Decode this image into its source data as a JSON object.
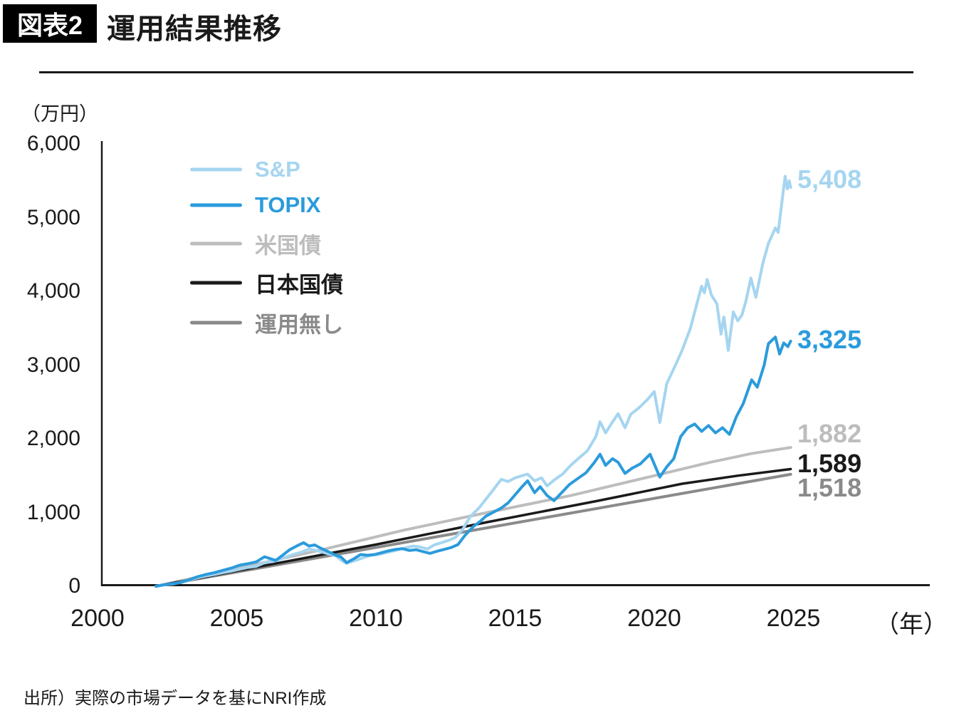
{
  "figure": {
    "tag": "図表2",
    "title": "運用結果推移",
    "source": "出所）実際の市場データを基にNRI作成"
  },
  "chart_data": {
    "type": "line",
    "title": "運用結果推移",
    "ylabel": "（万円）",
    "xlabel": "（年）",
    "xlim": [
      2000,
      2029.8
    ],
    "ylim": [
      0,
      6000
    ],
    "grid": false,
    "legend_position": "upper-left-inside",
    "yticks": [
      {
        "value": 6000,
        "label": "6,000"
      },
      {
        "value": 5000,
        "label": "5,000"
      },
      {
        "value": 4000,
        "label": "4,000"
      },
      {
        "value": 3000,
        "label": "3,000"
      },
      {
        "value": 2000,
        "label": "2,000"
      },
      {
        "value": 1000,
        "label": "1,000"
      },
      {
        "value": 0,
        "label": "0"
      }
    ],
    "xticks": [
      {
        "value": 2000,
        "label": "2000"
      },
      {
        "value": 2005,
        "label": "2005"
      },
      {
        "value": 2010,
        "label": "2010"
      },
      {
        "value": 2015,
        "label": "2015"
      },
      {
        "value": 2020,
        "label": "2020"
      },
      {
        "value": 2025,
        "label": "2025"
      }
    ],
    "series": [
      {
        "name": "S&P",
        "color": "#A5D5F0",
        "final_value": 5408,
        "end_label": "5,408",
        "points": [
          [
            2002.1,
            0
          ],
          [
            2002.4,
            18
          ],
          [
            2002.7,
            30
          ],
          [
            2003,
            55
          ],
          [
            2003.3,
            85
          ],
          [
            2003.6,
            115
          ],
          [
            2003.9,
            140
          ],
          [
            2004.2,
            160
          ],
          [
            2004.5,
            185
          ],
          [
            2004.8,
            205
          ],
          [
            2005.1,
            230
          ],
          [
            2005.4,
            255
          ],
          [
            2005.7,
            270
          ],
          [
            2006,
            320
          ],
          [
            2006.3,
            335
          ],
          [
            2006.5,
            355
          ],
          [
            2006.8,
            400
          ],
          [
            2007.1,
            440
          ],
          [
            2007.35,
            465
          ],
          [
            2007.6,
            505
          ],
          [
            2007.8,
            490
          ],
          [
            2008,
            470
          ],
          [
            2008.3,
            440
          ],
          [
            2008.55,
            415
          ],
          [
            2008.8,
            340
          ],
          [
            2008.95,
            310
          ],
          [
            2009.1,
            330
          ],
          [
            2009.35,
            360
          ],
          [
            2009.6,
            395
          ],
          [
            2009.85,
            420
          ],
          [
            2010.1,
            430
          ],
          [
            2010.35,
            455
          ],
          [
            2010.6,
            475
          ],
          [
            2010.85,
            500
          ],
          [
            2011.1,
            525
          ],
          [
            2011.35,
            545
          ],
          [
            2011.6,
            530
          ],
          [
            2011.85,
            505
          ],
          [
            2012.1,
            560
          ],
          [
            2012.35,
            590
          ],
          [
            2012.6,
            620
          ],
          [
            2012.85,
            660
          ],
          [
            2013.1,
            760
          ],
          [
            2013.4,
            950
          ],
          [
            2013.7,
            1060
          ],
          [
            2013.95,
            1180
          ],
          [
            2014.2,
            1300
          ],
          [
            2014.5,
            1450
          ],
          [
            2014.75,
            1420
          ],
          [
            2015,
            1470
          ],
          [
            2015.25,
            1500
          ],
          [
            2015.45,
            1520
          ],
          [
            2015.7,
            1430
          ],
          [
            2015.95,
            1470
          ],
          [
            2016.15,
            1360
          ],
          [
            2016.4,
            1440
          ],
          [
            2016.7,
            1520
          ],
          [
            2017,
            1640
          ],
          [
            2017.3,
            1740
          ],
          [
            2017.6,
            1840
          ],
          [
            2017.9,
            2030
          ],
          [
            2018.05,
            2230
          ],
          [
            2018.25,
            2080
          ],
          [
            2018.5,
            2230
          ],
          [
            2018.7,
            2340
          ],
          [
            2018.95,
            2150
          ],
          [
            2019.15,
            2330
          ],
          [
            2019.45,
            2420
          ],
          [
            2019.75,
            2530
          ],
          [
            2020,
            2640
          ],
          [
            2020.2,
            2220
          ],
          [
            2020.45,
            2750
          ],
          [
            2020.7,
            2950
          ],
          [
            2021,
            3200
          ],
          [
            2021.3,
            3500
          ],
          [
            2021.55,
            3860
          ],
          [
            2021.7,
            4070
          ],
          [
            2021.8,
            3980
          ],
          [
            2021.9,
            4160
          ],
          [
            2022.05,
            3950
          ],
          [
            2022.25,
            3830
          ],
          [
            2022.4,
            3420
          ],
          [
            2022.5,
            3650
          ],
          [
            2022.66,
            3200
          ],
          [
            2022.84,
            3720
          ],
          [
            2023,
            3600
          ],
          [
            2023.15,
            3680
          ],
          [
            2023.3,
            3880
          ],
          [
            2023.47,
            4180
          ],
          [
            2023.65,
            3920
          ],
          [
            2023.9,
            4380
          ],
          [
            2024.1,
            4650
          ],
          [
            2024.35,
            4860
          ],
          [
            2024.45,
            4800
          ],
          [
            2024.7,
            5560
          ],
          [
            2024.78,
            5390
          ],
          [
            2024.85,
            5500
          ],
          [
            2024.9,
            5408
          ]
        ]
      },
      {
        "name": "TOPIX",
        "color": "#2B9BDC",
        "final_value": 3325,
        "end_label": "3,325",
        "points": [
          [
            2002.1,
            0
          ],
          [
            2002.4,
            20
          ],
          [
            2002.7,
            35
          ],
          [
            2003,
            50
          ],
          [
            2003.3,
            90
          ],
          [
            2003.6,
            130
          ],
          [
            2003.9,
            160
          ],
          [
            2004.2,
            185
          ],
          [
            2004.5,
            215
          ],
          [
            2004.8,
            245
          ],
          [
            2005.1,
            285
          ],
          [
            2005.4,
            305
          ],
          [
            2005.7,
            330
          ],
          [
            2006,
            400
          ],
          [
            2006.2,
            375
          ],
          [
            2006.4,
            350
          ],
          [
            2006.65,
            420
          ],
          [
            2006.9,
            495
          ],
          [
            2007.15,
            545
          ],
          [
            2007.4,
            590
          ],
          [
            2007.6,
            545
          ],
          [
            2007.8,
            560
          ],
          [
            2008,
            520
          ],
          [
            2008.25,
            475
          ],
          [
            2008.5,
            430
          ],
          [
            2008.75,
            395
          ],
          [
            2008.95,
            320
          ],
          [
            2009.2,
            370
          ],
          [
            2009.45,
            430
          ],
          [
            2009.7,
            420
          ],
          [
            2009.95,
            430
          ],
          [
            2010.2,
            455
          ],
          [
            2010.45,
            480
          ],
          [
            2010.7,
            500
          ],
          [
            2010.95,
            510
          ],
          [
            2011.2,
            485
          ],
          [
            2011.45,
            495
          ],
          [
            2011.7,
            470
          ],
          [
            2011.95,
            445
          ],
          [
            2012.2,
            475
          ],
          [
            2012.45,
            500
          ],
          [
            2012.7,
            525
          ],
          [
            2012.95,
            565
          ],
          [
            2013.2,
            690
          ],
          [
            2013.5,
            810
          ],
          [
            2013.75,
            880
          ],
          [
            2013.95,
            950
          ],
          [
            2014.2,
            1000
          ],
          [
            2014.5,
            1060
          ],
          [
            2014.75,
            1130
          ],
          [
            2015,
            1240
          ],
          [
            2015.25,
            1350
          ],
          [
            2015.45,
            1430
          ],
          [
            2015.7,
            1270
          ],
          [
            2015.9,
            1350
          ],
          [
            2016.15,
            1230
          ],
          [
            2016.4,
            1160
          ],
          [
            2016.7,
            1280
          ],
          [
            2016.95,
            1380
          ],
          [
            2017.25,
            1460
          ],
          [
            2017.55,
            1540
          ],
          [
            2017.85,
            1680
          ],
          [
            2018.05,
            1790
          ],
          [
            2018.25,
            1640
          ],
          [
            2018.5,
            1730
          ],
          [
            2018.7,
            1680
          ],
          [
            2018.95,
            1530
          ],
          [
            2019.2,
            1600
          ],
          [
            2019.5,
            1660
          ],
          [
            2019.85,
            1790
          ],
          [
            2020.2,
            1480
          ],
          [
            2020.45,
            1620
          ],
          [
            2020.7,
            1730
          ],
          [
            2020.95,
            2030
          ],
          [
            2021.2,
            2150
          ],
          [
            2021.45,
            2200
          ],
          [
            2021.7,
            2100
          ],
          [
            2021.95,
            2180
          ],
          [
            2022.2,
            2080
          ],
          [
            2022.45,
            2150
          ],
          [
            2022.7,
            2060
          ],
          [
            2022.95,
            2300
          ],
          [
            2023.2,
            2480
          ],
          [
            2023.5,
            2800
          ],
          [
            2023.7,
            2700
          ],
          [
            2023.95,
            3000
          ],
          [
            2024.1,
            3290
          ],
          [
            2024.35,
            3380
          ],
          [
            2024.5,
            3150
          ],
          [
            2024.65,
            3300
          ],
          [
            2024.8,
            3250
          ],
          [
            2024.9,
            3325
          ]
        ]
      },
      {
        "name": "米国債",
        "color": "#BDBDBD",
        "final_value": 1882,
        "end_label": "1,882",
        "points": [
          [
            2002.1,
            0
          ],
          [
            2005,
            240
          ],
          [
            2008,
            490
          ],
          [
            2011,
            760
          ],
          [
            2014,
            1000
          ],
          [
            2017,
            1230
          ],
          [
            2020,
            1500
          ],
          [
            2022,
            1680
          ],
          [
            2023.5,
            1800
          ],
          [
            2024.9,
            1882
          ]
        ]
      },
      {
        "name": "日本国債",
        "color": "#1A1A1A",
        "final_value": 1589,
        "end_label": "1,589",
        "points": [
          [
            2002.1,
            0
          ],
          [
            2006,
            280
          ],
          [
            2010,
            565
          ],
          [
            2014,
            870
          ],
          [
            2018,
            1160
          ],
          [
            2021,
            1390
          ],
          [
            2023,
            1500
          ],
          [
            2024.9,
            1589
          ]
        ]
      },
      {
        "name": "運用無し",
        "color": "#8A8A8A",
        "final_value": 1518,
        "end_label": "1,518",
        "points": [
          [
            2002.1,
            0
          ],
          [
            2024.9,
            1518
          ]
        ]
      }
    ]
  }
}
